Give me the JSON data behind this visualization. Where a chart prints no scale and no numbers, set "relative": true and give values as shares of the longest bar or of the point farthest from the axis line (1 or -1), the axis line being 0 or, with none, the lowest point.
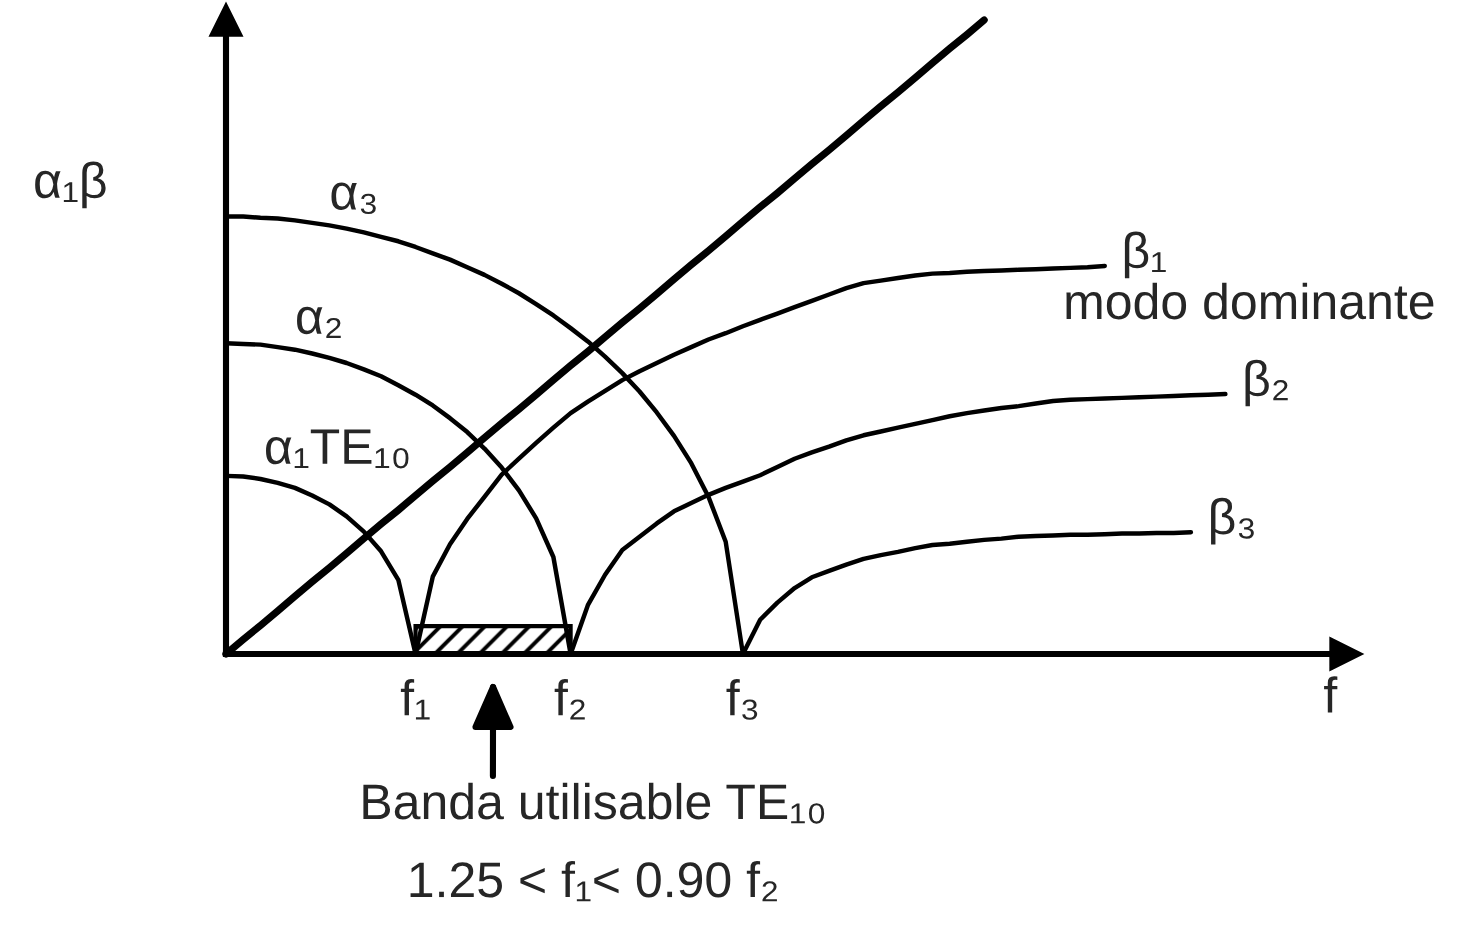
{
  "chart_data": {
    "type": "line",
    "relative": true,
    "xlabel": "f",
    "ylabel": "α₁β",
    "tick_labels": "x",
    "categories": [
      null,
      null,
      null,
      null,
      null,
      null,
      null,
      null,
      null,
      null,
      null,
      "f₁",
      null,
      null,
      null,
      null,
      null,
      null,
      null,
      null,
      "f₂",
      null,
      null,
      null,
      null,
      null,
      null,
      null,
      null,
      null,
      "f₃",
      null,
      null,
      null,
      null,
      null,
      null,
      null,
      null,
      null,
      null,
      null,
      null,
      null,
      null,
      null,
      null,
      null,
      null,
      null,
      null,
      null,
      null,
      null,
      null,
      null,
      null,
      null,
      null,
      null,
      null,
      null,
      null,
      null,
      null,
      null
    ],
    "series": [
      {
        "color": "#000000",
        "values": [
          0,
          0.023,
          0.045,
          0.068,
          0.091,
          0.114,
          0.136,
          0.159,
          0.182,
          0.205,
          0.227,
          0.25,
          0.273,
          0.295,
          0.318,
          0.341,
          0.364,
          0.386,
          0.409,
          0.432,
          0.455,
          0.477,
          0.5,
          0.523,
          0.545,
          0.568,
          0.591,
          0.614,
          0.636,
          0.659,
          0.682,
          0.705,
          0.727,
          0.75,
          0.773,
          0.795,
          0.818,
          0.841,
          0.864,
          0.886,
          0.909,
          0.932,
          0.955,
          0.977,
          1,
          null,
          null,
          null,
          null,
          null,
          null,
          null,
          null,
          null,
          null,
          null,
          null,
          null,
          null,
          null,
          null,
          null,
          null,
          null,
          null,
          null
        ]
      },
      {
        "name": "α₃",
        "color": "#000000",
        "values": [
          0.69,
          0.69,
          0.688,
          0.687,
          0.684,
          0.68,
          0.676,
          0.671,
          0.665,
          0.658,
          0.651,
          0.642,
          0.632,
          0.622,
          0.61,
          0.598,
          0.584,
          0.569,
          0.552,
          0.534,
          0.514,
          0.493,
          0.469,
          0.443,
          0.414,
          0.381,
          0.344,
          0.301,
          0.248,
          0.177,
          0,
          null,
          null,
          null,
          null,
          null,
          null,
          null,
          null,
          null,
          null,
          null,
          null,
          null,
          null,
          null,
          null,
          null,
          null,
          null,
          null,
          null,
          null,
          null,
          null,
          null,
          null,
          null,
          null,
          null,
          null,
          null,
          null,
          null,
          null,
          null
        ]
      },
      {
        "name": "α₂",
        "color": "#000000",
        "values": [
          0.49,
          0.489,
          0.488,
          0.484,
          0.48,
          0.474,
          0.467,
          0.459,
          0.449,
          0.438,
          0.424,
          0.409,
          0.392,
          0.372,
          0.35,
          0.324,
          0.294,
          0.258,
          0.214,
          0.153,
          0,
          null,
          null,
          null,
          null,
          null,
          null,
          null,
          null,
          null,
          null,
          null,
          null,
          null,
          null,
          null,
          null,
          null,
          null,
          null,
          null,
          null,
          null,
          null,
          null,
          null,
          null,
          null,
          null,
          null,
          null,
          null,
          null,
          null,
          null,
          null,
          null,
          null,
          null,
          null,
          null,
          null,
          null,
          null,
          null,
          null
        ]
      },
      {
        "name": "α₁TE₁₀",
        "color": "#000000",
        "values": [
          0.281,
          0.28,
          0.276,
          0.27,
          0.262,
          0.25,
          0.236,
          0.217,
          0.193,
          0.162,
          0.117,
          0,
          null,
          null,
          null,
          null,
          null,
          null,
          null,
          null,
          null,
          null,
          null,
          null,
          null,
          null,
          null,
          null,
          null,
          null,
          null,
          null,
          null,
          null,
          null,
          null,
          null,
          null,
          null,
          null,
          null,
          null,
          null,
          null,
          null,
          null,
          null,
          null,
          null,
          null,
          null,
          null,
          null,
          null,
          null,
          null,
          null,
          null,
          null,
          null,
          null,
          null,
          null,
          null,
          null,
          null
        ]
      },
      {
        "name": "β₁\nmodo dominante",
        "color": "#000000",
        "values": [
          null,
          null,
          null,
          null,
          null,
          null,
          null,
          null,
          null,
          null,
          null,
          0,
          0.122,
          0.173,
          0.213,
          0.248,
          0.283,
          0.308,
          0.333,
          0.357,
          0.38,
          0.398,
          0.415,
          0.432,
          0.446,
          0.459,
          0.472,
          0.484,
          0.496,
          0.506,
          0.517,
          0.527,
          0.537,
          0.547,
          0.557,
          0.567,
          0.577,
          0.585,
          0.589,
          0.593,
          0.597,
          0.6,
          0.601,
          0.603,
          0.604,
          0.605,
          0.606,
          0.607,
          0.608,
          0.609,
          0.61,
          0.612,
          null,
          null,
          null,
          null,
          null,
          null,
          null,
          null,
          null,
          null,
          null,
          null,
          null,
          null
        ]
      },
      {
        "name": "β₂",
        "color": "#000000",
        "values": [
          null,
          null,
          null,
          null,
          null,
          null,
          null,
          null,
          null,
          null,
          null,
          null,
          null,
          null,
          null,
          null,
          null,
          null,
          null,
          null,
          0,
          0.077,
          0.125,
          0.164,
          0.185,
          0.206,
          0.225,
          0.238,
          0.251,
          0.262,
          0.272,
          0.282,
          0.295,
          0.308,
          0.318,
          0.327,
          0.337,
          0.345,
          0.351,
          0.357,
          0.363,
          0.369,
          0.375,
          0.38,
          0.384,
          0.388,
          0.391,
          0.395,
          0.399,
          0.401,
          0.402,
          0.403,
          0.404,
          0.405,
          0.406,
          0.407,
          0.408,
          0.409,
          0.41,
          null,
          null,
          null,
          null,
          null,
          null,
          null
        ]
      },
      {
        "name": "β₃",
        "color": "#000000",
        "values": [
          null,
          null,
          null,
          null,
          null,
          null,
          null,
          null,
          null,
          null,
          null,
          null,
          null,
          null,
          null,
          null,
          null,
          null,
          null,
          null,
          null,
          null,
          null,
          null,
          null,
          null,
          null,
          null,
          null,
          null,
          0,
          0.054,
          0.081,
          0.104,
          0.121,
          0.131,
          0.141,
          0.15,
          0.156,
          0.161,
          0.167,
          0.172,
          0.174,
          0.177,
          0.18,
          0.182,
          0.185,
          0.186,
          0.187,
          0.188,
          0.188,
          0.189,
          0.19,
          0.19,
          0.191,
          0.191,
          0.192,
          null,
          null,
          null,
          null,
          null,
          null,
          null,
          null,
          null
        ]
      }
    ],
    "bands": [
      {
        "axis": "x",
        "from": "f₁",
        "to": "f₂",
        "color": "#000000"
      }
    ],
    "annotations": [
      "Banda utilisable TE₁₀",
      "1.25 < f₁< 0.90 f₂"
    ]
  }
}
